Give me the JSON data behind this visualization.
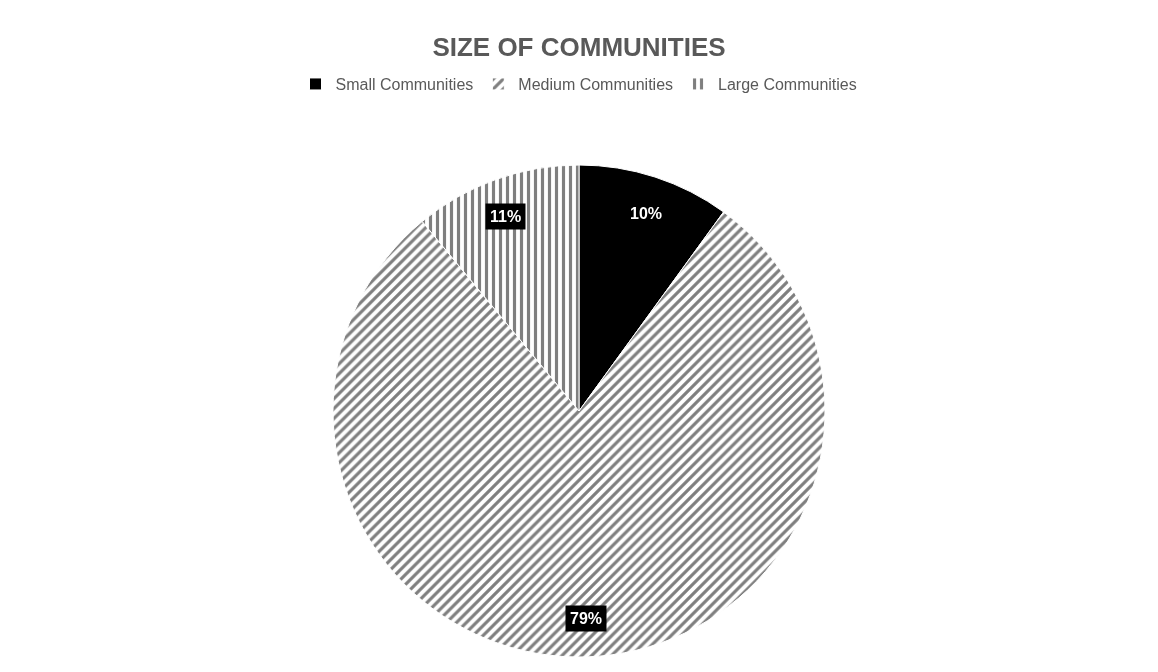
{
  "chart_data": {
    "type": "pie",
    "title": "SIZE OF COMMUNITIES",
    "categories": [
      "Small Communities",
      "Medium Communities",
      "Large Communities"
    ],
    "values": [
      10,
      79,
      11
    ],
    "colors": [
      "#000000",
      "#ffffff",
      "#ffffff"
    ],
    "value_labels": [
      "10%",
      "79%",
      "11%"
    ],
    "legend": "top"
  }
}
